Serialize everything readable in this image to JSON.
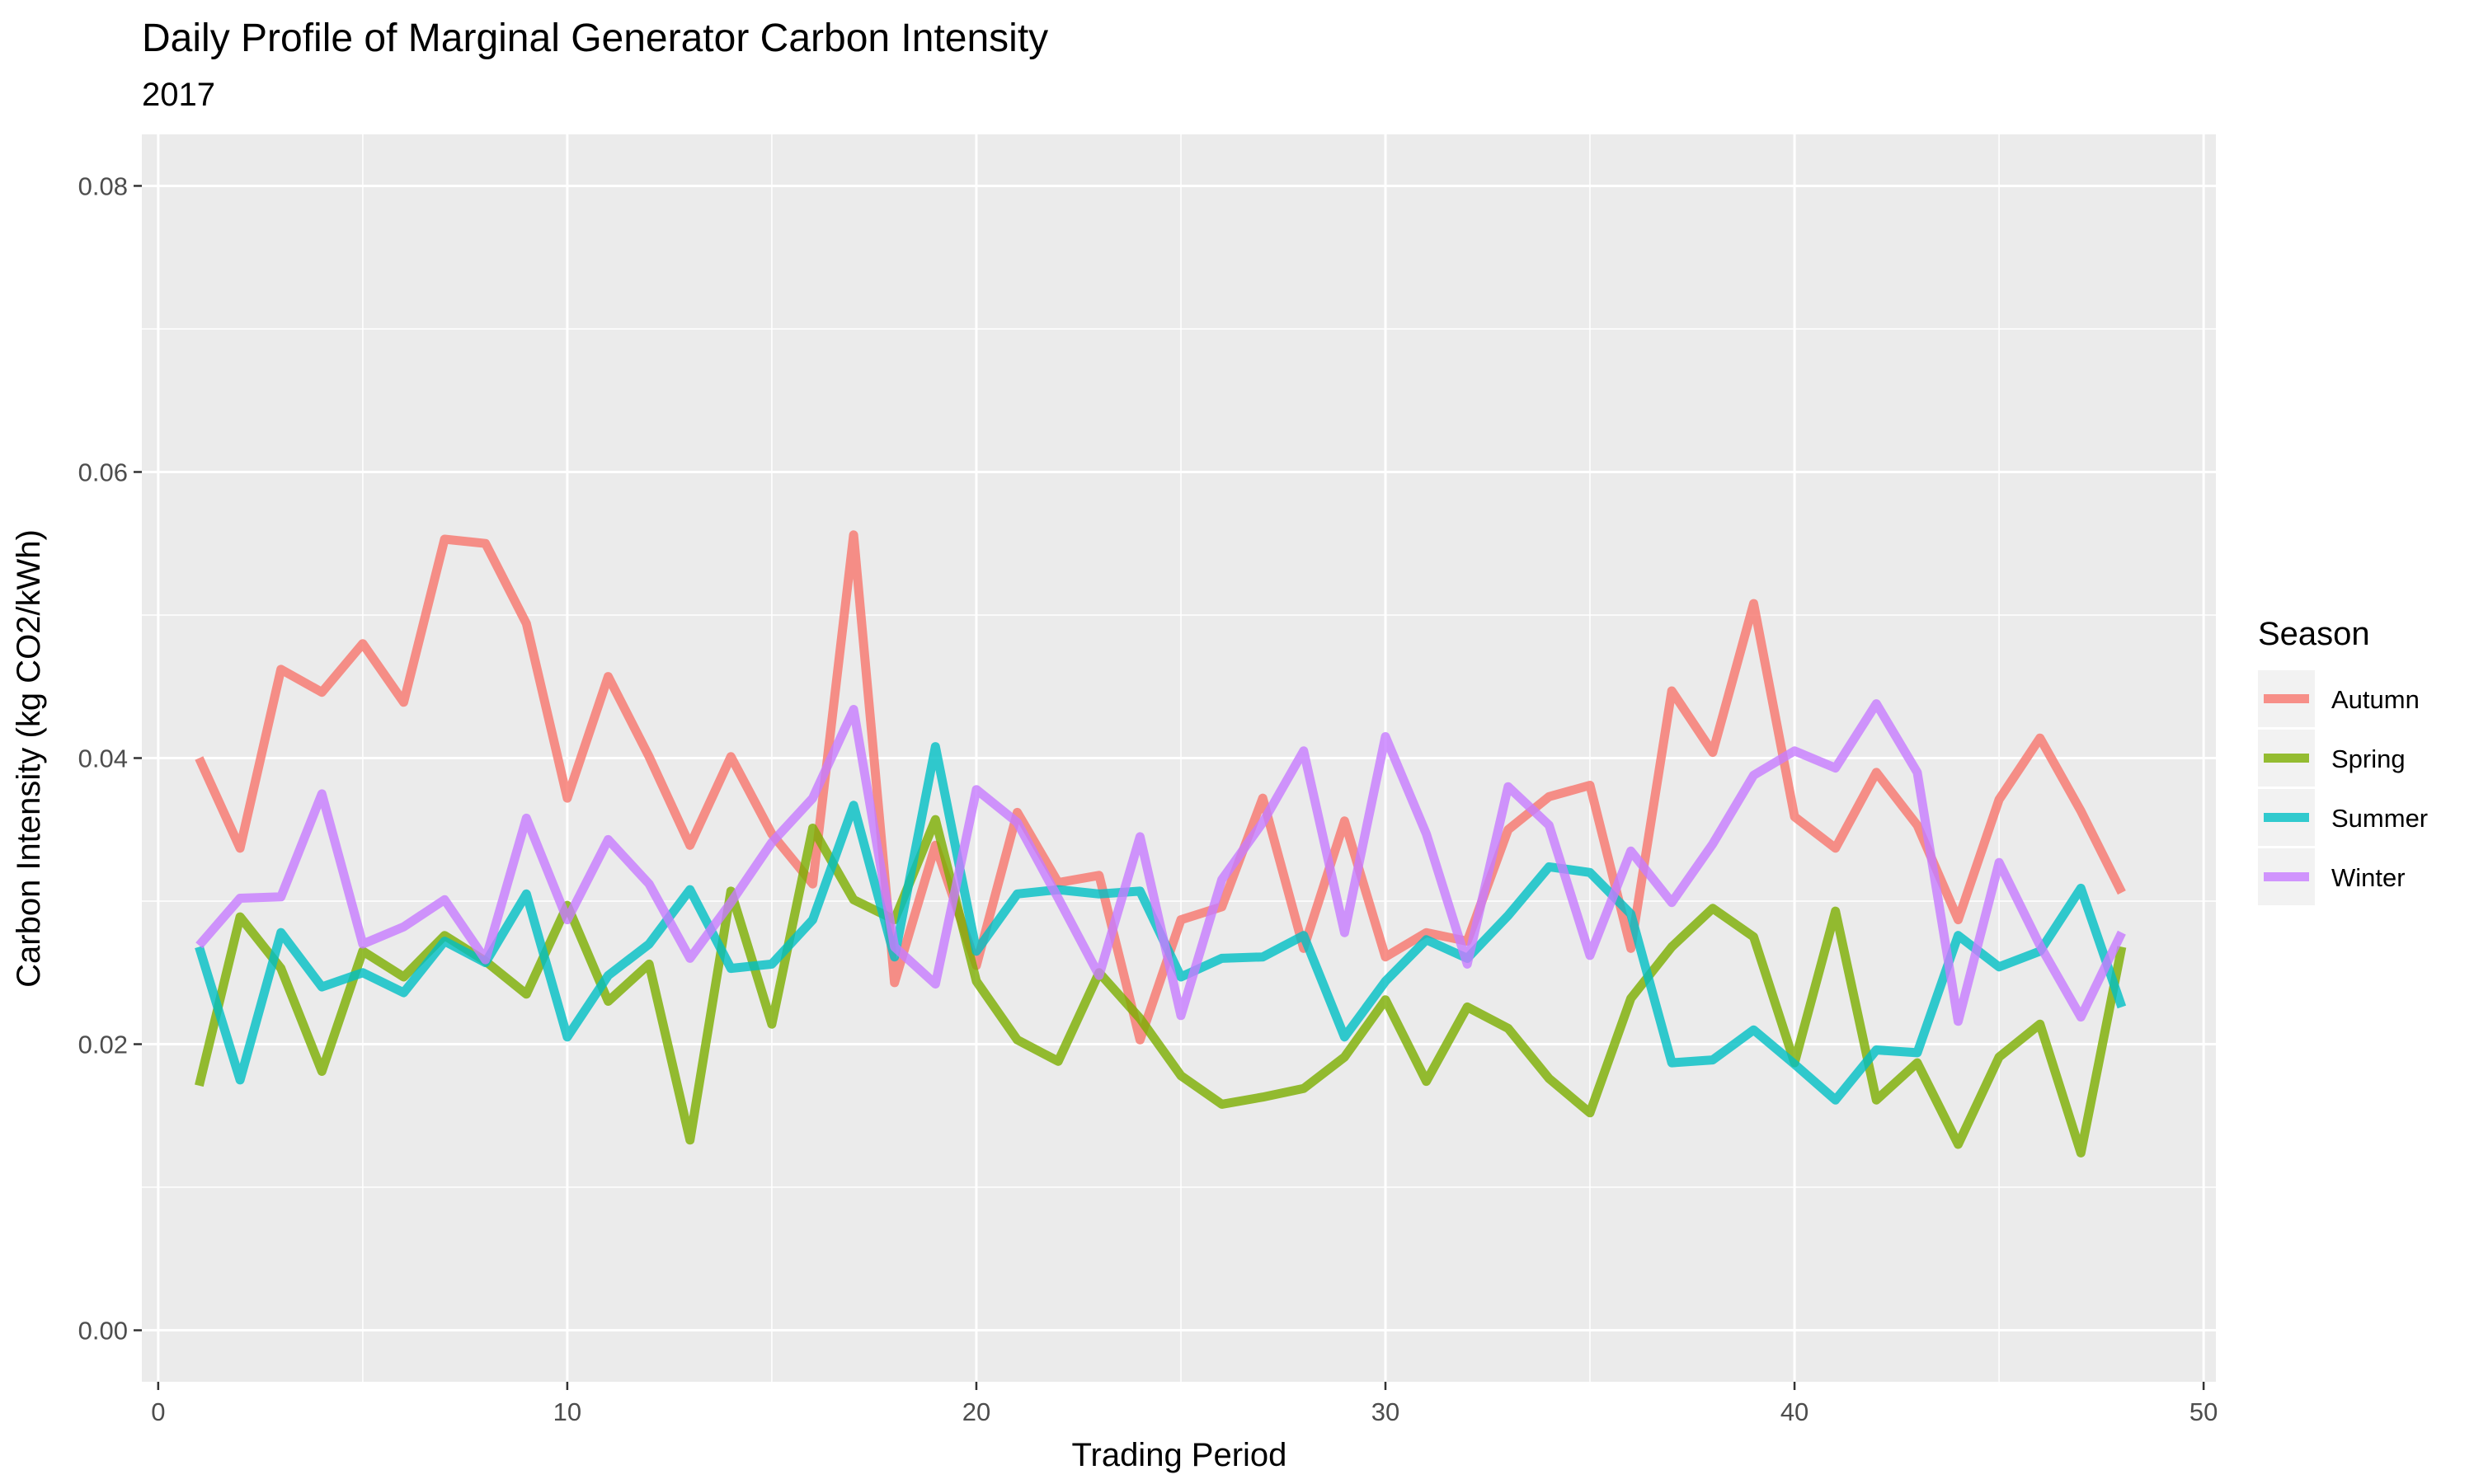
{
  "chart_data": {
    "type": "line",
    "title": "Daily Profile of Marginal Generator Carbon Intensity",
    "subtitle": "2017",
    "xlabel": "Trading Period",
    "ylabel": "Carbon Intensity (kg CO2/kWh)",
    "xlim": [
      -0.4,
      50.3
    ],
    "ylim": [
      -0.0036,
      0.0836
    ],
    "x_ticks": [
      0,
      10,
      20,
      30,
      40,
      50
    ],
    "x_tick_labels": [
      "0",
      "10",
      "20",
      "30",
      "40",
      "50"
    ],
    "y_ticks": [
      0,
      0.02,
      0.04,
      0.06,
      0.08
    ],
    "y_tick_labels": [
      "0.00",
      "0.02",
      "0.04",
      "0.06",
      "0.08"
    ],
    "grid": true,
    "legend": {
      "title": "Season",
      "placement": "right"
    },
    "x": [
      1,
      2,
      3,
      4,
      5,
      6,
      7,
      8,
      9,
      10,
      11,
      12,
      13,
      14,
      15,
      16,
      17,
      18,
      19,
      20,
      21,
      22,
      23,
      24,
      25,
      26,
      27,
      28,
      29,
      30,
      31,
      32,
      33,
      34,
      35,
      36,
      37,
      38,
      39,
      40,
      41,
      42,
      43,
      44,
      45,
      46,
      47,
      48
    ],
    "series": [
      {
        "name": "Autumn",
        "color": "#F8766D",
        "values": [
          0.04,
          0.0337,
          0.0462,
          0.0446,
          0.048,
          0.0439,
          0.0553,
          0.055,
          0.0494,
          0.0372,
          0.0457,
          0.0401,
          0.0339,
          0.0401,
          0.0347,
          0.0312,
          0.0556,
          0.0243,
          0.0339,
          0.0255,
          0.0362,
          0.0313,
          0.0318,
          0.0203,
          0.0287,
          0.0296,
          0.0372,
          0.0267,
          0.0356,
          0.0261,
          0.0278,
          0.0272,
          0.035,
          0.0373,
          0.0381,
          0.0267,
          0.0447,
          0.0404,
          0.0508,
          0.0359,
          0.0337,
          0.039,
          0.0353,
          0.0287,
          0.0371,
          0.0414,
          0.0363,
          0.0306
        ]
      },
      {
        "name": "Spring",
        "color": "#7CAE00",
        "values": [
          0.0171,
          0.0289,
          0.0253,
          0.0181,
          0.0265,
          0.0247,
          0.0276,
          0.0258,
          0.0235,
          0.0297,
          0.023,
          0.0256,
          0.0133,
          0.0307,
          0.0214,
          0.0351,
          0.0301,
          0.0287,
          0.0357,
          0.0244,
          0.0203,
          0.0188,
          0.025,
          0.0218,
          0.0178,
          0.0158,
          0.0163,
          0.0169,
          0.0191,
          0.0231,
          0.0174,
          0.0226,
          0.0211,
          0.0176,
          0.0152,
          0.0232,
          0.0268,
          0.0295,
          0.0275,
          0.0187,
          0.0293,
          0.0161,
          0.0187,
          0.013,
          0.0191,
          0.0214,
          0.0124,
          0.0268
        ]
      },
      {
        "name": "Summer",
        "color": "#00BFC4",
        "values": [
          0.0268,
          0.0175,
          0.0278,
          0.024,
          0.025,
          0.0236,
          0.0272,
          0.0257,
          0.0305,
          0.0205,
          0.0248,
          0.027,
          0.0308,
          0.0253,
          0.0256,
          0.0287,
          0.0367,
          0.0261,
          0.0408,
          0.0265,
          0.0305,
          0.0308,
          0.0305,
          0.0307,
          0.0247,
          0.026,
          0.0261,
          0.0276,
          0.0205,
          0.0244,
          0.0273,
          0.026,
          0.029,
          0.0324,
          0.032,
          0.0291,
          0.0187,
          0.0189,
          0.021,
          0.0186,
          0.0161,
          0.0196,
          0.0194,
          0.0276,
          0.0254,
          0.0265,
          0.0309,
          0.0226
        ]
      },
      {
        "name": "Winter",
        "color": "#C77CFF",
        "values": [
          0.0269,
          0.0302,
          0.0303,
          0.0375,
          0.027,
          0.0282,
          0.0301,
          0.0259,
          0.0358,
          0.0287,
          0.0343,
          0.0312,
          0.026,
          0.0299,
          0.0341,
          0.0372,
          0.0434,
          0.0268,
          0.0242,
          0.0378,
          0.0355,
          0.0302,
          0.0248,
          0.0345,
          0.022,
          0.0315,
          0.0355,
          0.0405,
          0.0278,
          0.0415,
          0.0347,
          0.0256,
          0.038,
          0.0353,
          0.0262,
          0.0335,
          0.0299,
          0.034,
          0.0388,
          0.0405,
          0.0393,
          0.0438,
          0.039,
          0.0216,
          0.0327,
          0.0269,
          0.0219,
          0.0278
        ]
      }
    ]
  }
}
